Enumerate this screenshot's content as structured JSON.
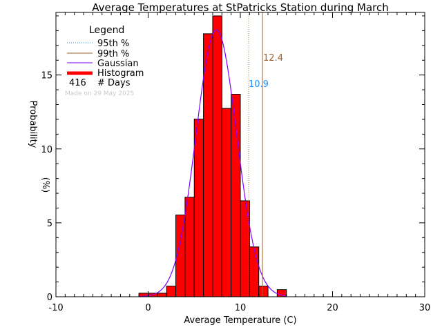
{
  "chart_data": {
    "type": "bar",
    "title": "Average Temperatures at StPatricks Station during March",
    "xlabel": "Average Temperature (C)",
    "ylabel": "Probability",
    "ylabel_unit": "(%)",
    "xlim": [
      -10,
      30
    ],
    "ylim": [
      0,
      19
    ],
    "xticks": [
      -10,
      0,
      10,
      20,
      30
    ],
    "yticks": [
      0,
      5,
      10,
      15
    ],
    "bin_width": 1,
    "bins_start": [
      -1,
      0,
      1,
      2,
      3,
      4,
      5,
      6,
      7,
      8,
      9,
      10,
      11,
      12,
      13,
      14
    ],
    "values": [
      0.24,
      0.24,
      0.24,
      0.72,
      5.53,
      6.73,
      12.02,
      17.79,
      19.0,
      12.74,
      13.7,
      6.49,
      3.37,
      0.72,
      0,
      0.48
    ],
    "gaussian": {
      "mean": 7.4,
      "sigma": 2.21
    },
    "percentiles": [
      {
        "label": "10.9",
        "value": 10.9,
        "color": "#1e90ff",
        "line_color": "#b0703a",
        "style": "dotted"
      },
      {
        "label": "12.4",
        "value": 12.4,
        "color": "#a0602a",
        "line_color": "#a0602a",
        "style": "solid"
      }
    ],
    "legend": {
      "title": "Legend",
      "placement": "top-left",
      "entries": [
        {
          "label": "95th %",
          "color": "#1e90ff",
          "style": "dotted"
        },
        {
          "label": "99th %",
          "color": "#a0602a",
          "style": "solid"
        },
        {
          "label": "Gaussian",
          "color": "#8000ff",
          "style": "solid"
        },
        {
          "label": "Histogram",
          "color": "#ff0000",
          "style": "thick"
        }
      ],
      "count_value": "416",
      "count_label": "# Days",
      "note": "Made on 29 May 2025"
    },
    "colors": {
      "bar": "#ff0000",
      "gaussian": "#8000ff"
    }
  }
}
